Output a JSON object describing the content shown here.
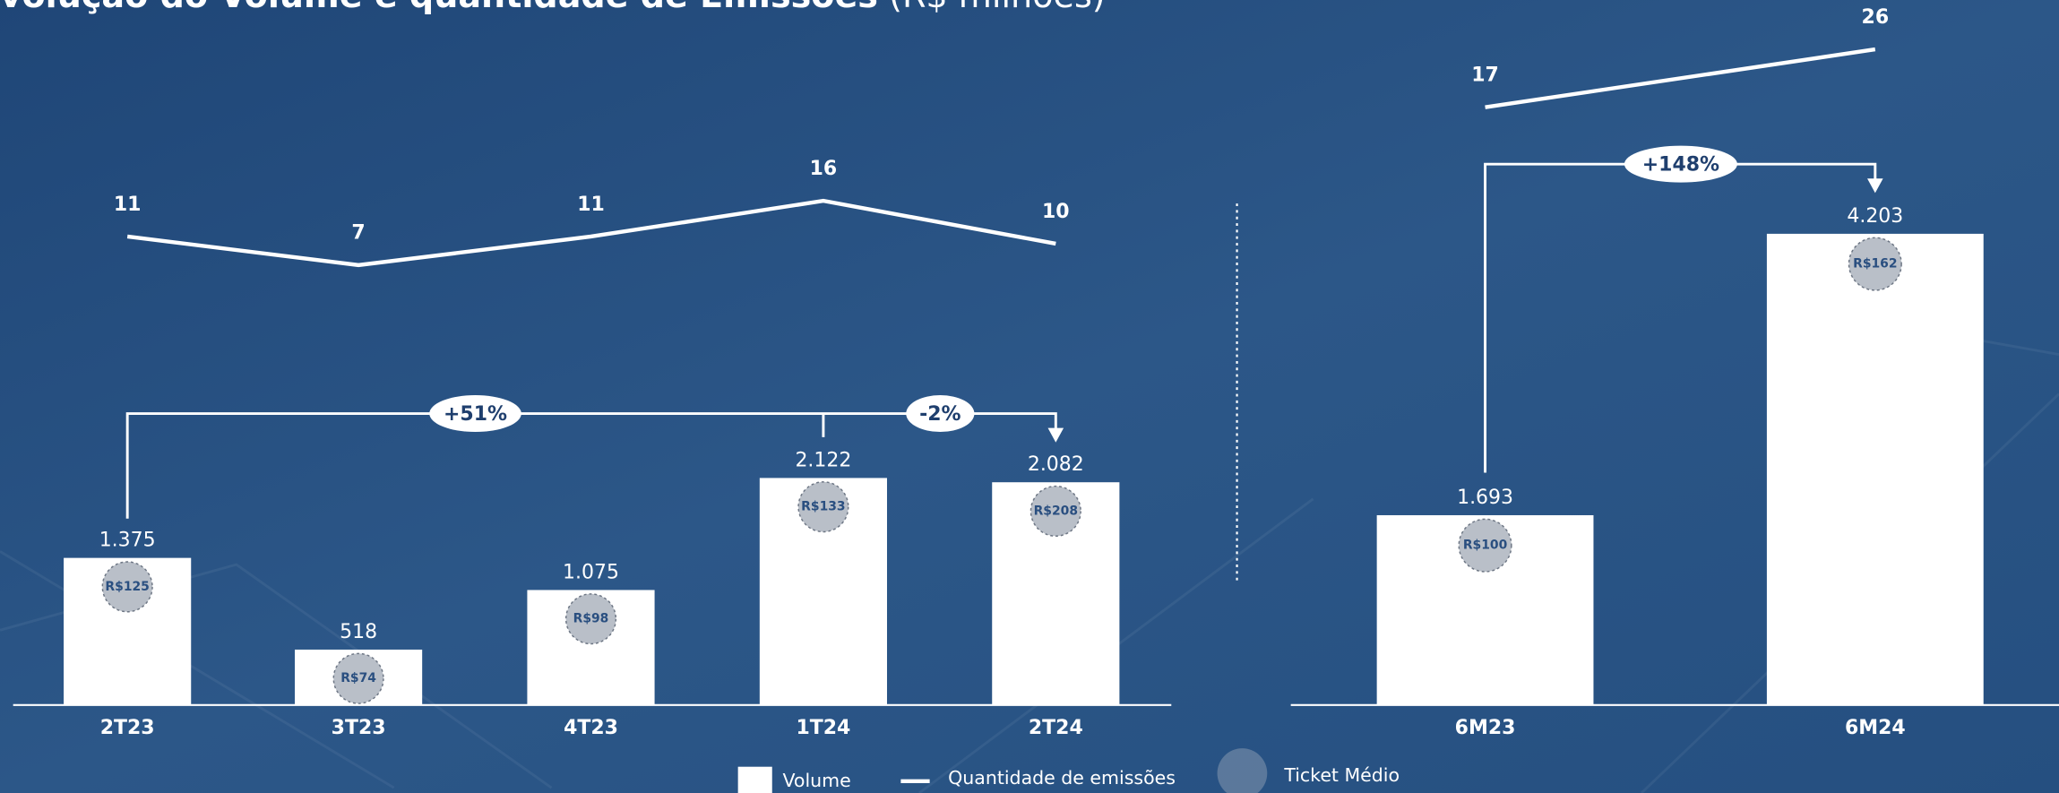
{
  "title": "Evolução do Volume e quantidade de Emissões",
  "subtitle": "(R$ milhões)",
  "chart_data": [
    {
      "type": "combo",
      "categories": [
        "2T23",
        "3T23",
        "4T23",
        "1T24",
        "2T24"
      ],
      "series": [
        {
          "name": "Volume",
          "type": "bar",
          "color": "#ffffff",
          "values": [
            1375,
            518,
            1075,
            2122,
            2082
          ],
          "value_labels": [
            "1.375",
            "518",
            "1.075",
            "2.122",
            "2.082"
          ]
        },
        {
          "name": "Quantidade de emissões",
          "type": "line",
          "color": "#ffffff",
          "values": [
            11,
            7,
            11,
            16,
            10
          ]
        },
        {
          "name": "Ticket Médio",
          "type": "bubble",
          "color": "#b9bfc8",
          "values": [
            125,
            74,
            98,
            133,
            208
          ],
          "value_labels": [
            "R$125",
            "R$74",
            "R$98",
            "R$133",
            "R$208"
          ]
        }
      ],
      "annotations": [
        "+51%",
        "-2%"
      ]
    },
    {
      "type": "combo",
      "categories": [
        "6M23",
        "6M24"
      ],
      "series": [
        {
          "type": "bar",
          "color": "#ffffff",
          "values": [
            1693,
            4203
          ],
          "value_labels": [
            "1.693",
            "4.203"
          ]
        },
        {
          "type": "line",
          "color": "#ffffff",
          "values": [
            17,
            26
          ]
        },
        {
          "type": "bubble",
          "color": "#b9bfc8",
          "values": [
            100,
            162
          ],
          "value_labels": [
            "R$100",
            "R$162"
          ]
        }
      ],
      "annotations": [
        "+148%"
      ]
    }
  ]
}
